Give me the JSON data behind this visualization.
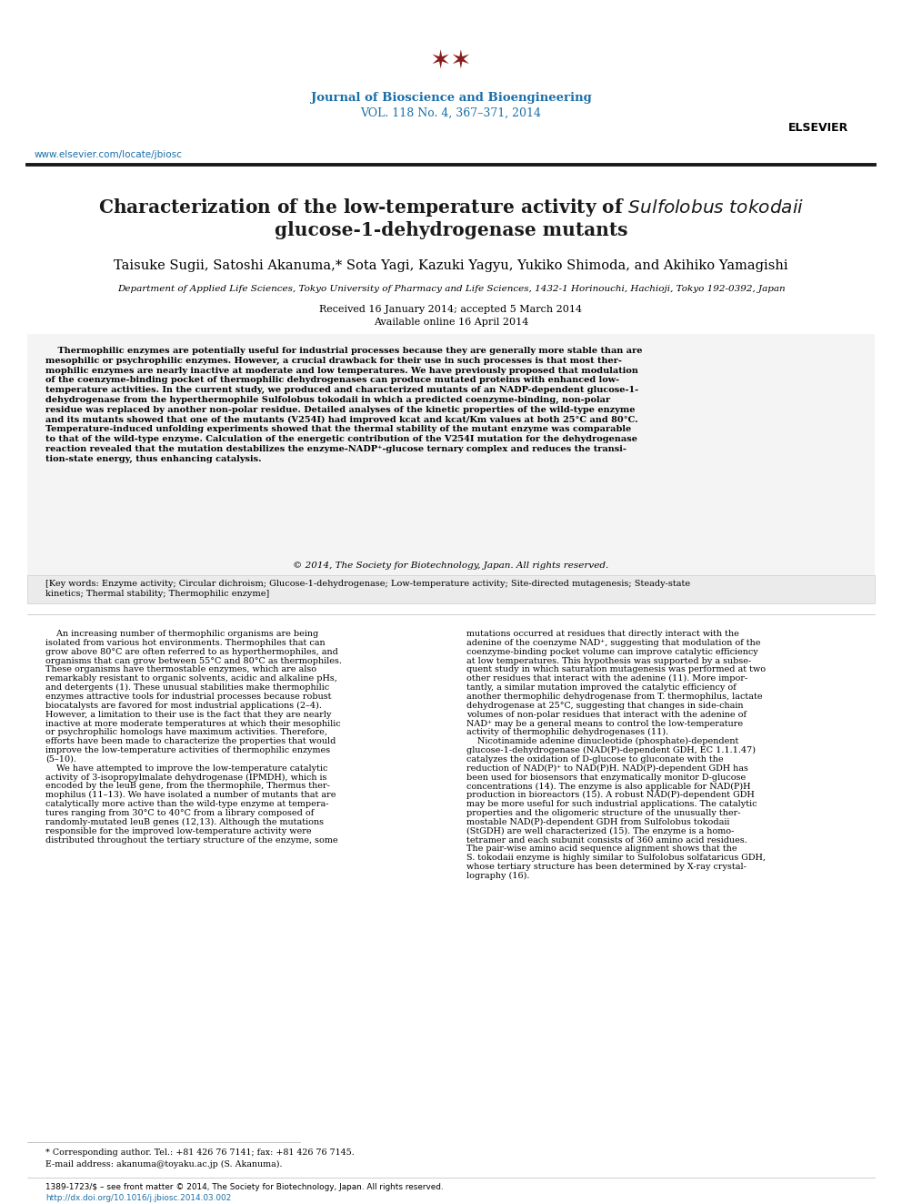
{
  "page_bg": "#ffffff",
  "journal_name": "Journal of Bioscience and Bioengineering",
  "journal_vol": "VOL. 118 No. 4, 367–371, 2014",
  "journal_color": "#1a6fa8",
  "website": "www.elsevier.com/locate/jbiosc",
  "website_color": "#1a6fa8",
  "title_line1": "Characterization of the low-temperature activity of ",
  "title_italic": "Sulfolobus tokodaii",
  "title_line2": "glucose-1-dehydrogenase mutants",
  "title_color": "#1a1a1a",
  "authors": "Taisuke Sugii, Satoshi Akanuma,* Sota Yagi, Kazuki Yagyu, Yukiko Shimoda, and Akihiko Yamagishi",
  "affiliation": "Department of Applied Life Sciences, Tokyo University of Pharmacy and Life Sciences, 1432-1 Horinouchi, Hachioji, Tokyo 192-0392, Japan",
  "received": "Received 16 January 2014; accepted 5 March 2014",
  "available": "Available online 16 April 2014",
  "abstract_lines": [
    "    Thermophilic enzymes are potentially useful for industrial processes because they are generally more stable than are",
    "mesophilic or psychrophilic enzymes. However, a crucial drawback for their use in such processes is that most ther-",
    "mophilic enzymes are nearly inactive at moderate and low temperatures. We have previously proposed that modulation",
    "of the coenzyme-binding pocket of thermophilic dehydrogenases can produce mutated proteins with enhanced low-",
    "temperature activities. In the current study, we produced and characterized mutants of an NADP-dependent glucose-1-",
    "dehydrogenase from the hyperthermophile Sulfolobus tokodaii in which a predicted coenzyme-binding, non-polar",
    "residue was replaced by another non-polar residue. Detailed analyses of the kinetic properties of the wild-type enzyme",
    "and its mutants showed that one of the mutants (V254I) had improved kcat and kcat/Km values at both 25°C and 80°C.",
    "Temperature-induced unfolding experiments showed that the thermal stability of the mutant enzyme was comparable",
    "to that of the wild-type enzyme. Calculation of the energetic contribution of the V254I mutation for the dehydrogenase",
    "reaction revealed that the mutation destabilizes the enzyme-NADP⁺-glucose ternary complex and reduces the transi-",
    "tion-state energy, thus enhancing catalysis."
  ],
  "copyright": "© 2014, The Society for Biotechnology, Japan. All rights reserved.",
  "keywords_line1": "[Key words: Enzyme activity; Circular dichroism; Glucose-1-dehydrogenase; Low-temperature activity; Site-directed mutagenesis; Steady-state",
  "keywords_line2": "kinetics; Thermal stability; Thermophilic enzyme]",
  "col1_lines": [
    "    An increasing number of thermophilic organisms are being",
    "isolated from various hot environments. Thermophiles that can",
    "grow above 80°C are often referred to as hyperthermophiles, and",
    "organisms that can grow between 55°C and 80°C as thermophiles.",
    "These organisms have thermostable enzymes, which are also",
    "remarkably resistant to organic solvents, acidic and alkaline pHs,",
    "and detergents (1). These unusual stabilities make thermophilic",
    "enzymes attractive tools for industrial processes because robust",
    "biocatalysts are favored for most industrial applications (2–4).",
    "However, a limitation to their use is the fact that they are nearly",
    "inactive at more moderate temperatures at which their mesophilic",
    "or psychrophilic homologs have maximum activities. Therefore,",
    "efforts have been made to characterize the properties that would",
    "improve the low-temperature activities of thermophilic enzymes",
    "(5–10).",
    "    We have attempted to improve the low-temperature catalytic",
    "activity of 3-isopropylmalate dehydrogenase (IPMDH), which is",
    "encoded by the leuB gene, from the thermophile, Thermus ther-",
    "mophilus (11–13). We have isolated a number of mutants that are",
    "catalytically more active than the wild-type enzyme at tempera-",
    "tures ranging from 30°C to 40°C from a library composed of",
    "randomly-mutated leuB genes (12,13). Although the mutations",
    "responsible for the improved low-temperature activity were",
    "distributed throughout the tertiary structure of the enzyme, some"
  ],
  "col2_lines": [
    "mutations occurred at residues that directly interact with the",
    "adenine of the coenzyme NAD⁺, suggesting that modulation of the",
    "coenzyme-binding pocket volume can improve catalytic efficiency",
    "at low temperatures. This hypothesis was supported by a subse-",
    "quent study in which saturation mutagenesis was performed at two",
    "other residues that interact with the adenine (11). More impor-",
    "tantly, a similar mutation improved the catalytic efficiency of",
    "another thermophilic dehydrogenase from T. thermophilus, lactate",
    "dehydrogenase at 25°C, suggesting that changes in side-chain",
    "volumes of non-polar residues that interact with the adenine of",
    "NAD⁺ may be a general means to control the low-temperature",
    "activity of thermophilic dehydrogenases (11).",
    "    Nicotinamide adenine dinucleotide (phosphate)-dependent",
    "glucose-1-dehydrogenase (NAD(P)-dependent GDH, EC 1.1.1.47)",
    "catalyzes the oxidation of D-glucose to gluconate with the",
    "reduction of NAD(P)⁺ to NAD(P)H. NAD(P)-dependent GDH has",
    "been used for biosensors that enzymatically monitor D-glucose",
    "concentrations (14). The enzyme is also applicable for NAD(P)H",
    "production in bioreactors (15). A robust NAD(P)-dependent GDH",
    "may be more useful for such industrial applications. The catalytic",
    "properties and the oligomeric structure of the unusually ther-",
    "mostable NAD(P)-dependent GDH from Sulfolobus tokodaii",
    "(StGDH) are well characterized (15). The enzyme is a homo-",
    "tetramer and each subunit consists of 360 amino acid residues.",
    "The pair-wise amino acid sequence alignment shows that the",
    "S. tokodaii enzyme is highly similar to Sulfolobus solfataricus GDH,",
    "whose tertiary structure has been determined by X-ray crystal-",
    "lography (16)."
  ],
  "footnote_star": "* Corresponding author. Tel.: +81 426 76 7141; fax: +81 426 76 7145.",
  "footnote_email": "E-mail address: akanuma@toyaku.ac.jp (S. Akanuma).",
  "footer_issn": "1389-1723/$ – see front matter © 2014, The Society for Biotechnology, Japan. All rights reserved.",
  "footer_doi": "http://dx.doi.org/10.1016/j.jbiosc.2014.03.002",
  "footer_doi_color": "#1a6fa8",
  "separator_color": "#1a1a1a",
  "link_color": "#1a6fa8",
  "header_logo_color": "#8b1a1a",
  "elsevier_color": "#000000"
}
